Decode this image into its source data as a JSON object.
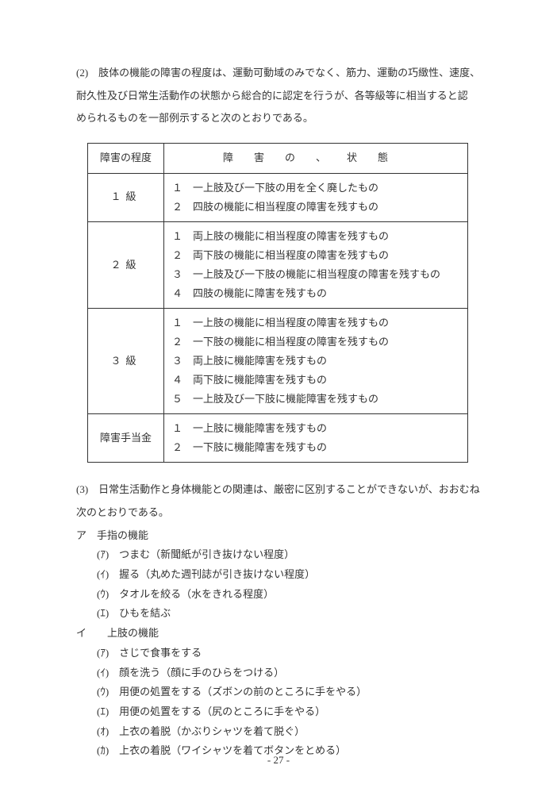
{
  "para2_num": "(2)",
  "para2_text_l1": "　肢体の機能の障害の程度は、運動可動域のみでなく、筋力、運動の巧緻性、速度、",
  "para2_text_l2": "耐久性及び日常生活動作の状態から総合的に認定を行うが、各等級等に相当すると認",
  "para2_text_l3": "められるものを一部例示すると次のとおりである。",
  "table": {
    "head_left": "障害の程度",
    "head_right": "障害の、状態",
    "rows": [
      {
        "grade": "１級",
        "items": [
          "１　一上肢及び一下肢の用を全く廃したもの",
          "２　四肢の機能に相当程度の障害を残すもの"
        ]
      },
      {
        "grade": "２級",
        "items": [
          "１　両上肢の機能に相当程度の障害を残すもの",
          "２　両下肢の機能に相当程度の障害を残すもの",
          "３　一上肢及び一下肢の機能に相当程度の障害を残すもの",
          "４　四肢の機能に障害を残すもの"
        ]
      },
      {
        "grade": "３級",
        "items": [
          "１　一上肢の機能に相当程度の障害を残すもの",
          "２　一下肢の機能に相当程度の障害を残すもの",
          "３　両上肢に機能障害を残すもの",
          "４　両下肢に機能障害を残すもの",
          "５　一上肢及び一下肢に機能障害を残すもの"
        ]
      },
      {
        "grade": "障害手当金",
        "items": [
          "１　一上肢に機能障害を残すもの",
          "２　一下肢に機能障害を残すもの"
        ]
      }
    ]
  },
  "para3_num": "(3)",
  "para3_text_l1": "　日常生活動作と身体機能との関連は、厳密に区別することができないが、おおむね",
  "para3_text_l2": "次のとおりである。",
  "sec_a": "ア　手指の機能",
  "a_items": [
    "(ｱ)　つまむ（新聞紙が引き抜けない程度）",
    "(ｲ)　握る（丸めた週刊誌が引き抜けない程度）",
    "(ｳ)　タオルを絞る（水をきれる程度）",
    "(ｴ)　ひもを結ぶ"
  ],
  "sec_i": "イ　　上肢の機能",
  "i_items": [
    "(ｱ)　さじで食事をする",
    "(ｲ)　顔を洗う（顔に手のひらをつける）",
    "(ｳ)　用便の処置をする（ズボンの前のところに手をやる）",
    "(ｴ)　用便の処置をする（尻のところに手をやる）",
    "(ｵ)　上衣の着脱（かぶりシャツを着て脱ぐ）",
    "(ｶ)　上衣の着脱（ワイシャツを着てボタンをとめる）"
  ],
  "page_number": "- 27 -"
}
